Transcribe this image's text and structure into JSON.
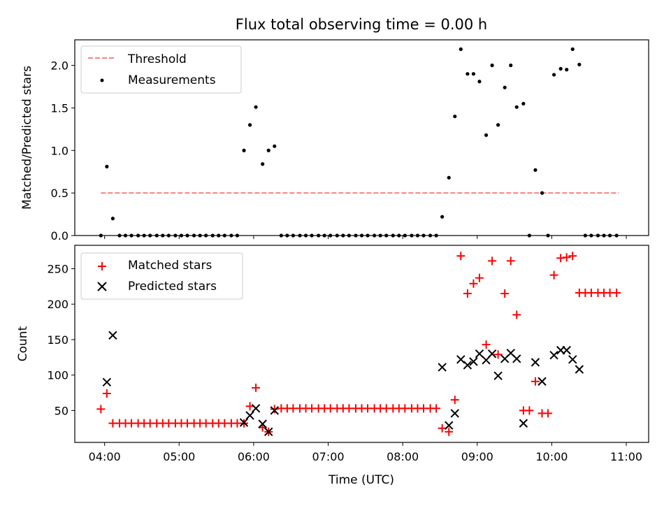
{
  "title": "Flux total observing time = 0.00 h",
  "chart_data": [
    {
      "type": "scatter",
      "ylabel": "Matched/Predicted stars",
      "xlim": [
        3.6,
        11.3
      ],
      "ylim": [
        0,
        2.3
      ],
      "yticks": [
        0.0,
        0.5,
        1.0,
        1.5,
        2.0
      ],
      "ytick_labels": [
        "0.0",
        "0.5",
        "1.0",
        "1.5",
        "2.0"
      ],
      "xticks": [
        4,
        5,
        6,
        7,
        8,
        9,
        10,
        11
      ],
      "xtick_labels": [],
      "legend": "top-left",
      "threshold": {
        "name": "Threshold",
        "value": 0.5,
        "x_range": [
          3.95,
          10.9
        ],
        "color": "#ff7f7f",
        "style": "dashed"
      },
      "series": [
        {
          "name": "Measurements",
          "color": "#000000",
          "marker": "dot",
          "points": [
            [
              3.95,
              0.0
            ],
            [
              4.03,
              0.81
            ],
            [
              4.11,
              0.2
            ],
            [
              4.2,
              0.0
            ],
            [
              4.28,
              0.0
            ],
            [
              4.36,
              0.0
            ],
            [
              4.45,
              0.0
            ],
            [
              4.53,
              0.0
            ],
            [
              4.61,
              0.0
            ],
            [
              4.7,
              0.0
            ],
            [
              4.78,
              0.0
            ],
            [
              4.86,
              0.0
            ],
            [
              4.95,
              0.0
            ],
            [
              5.03,
              0.0
            ],
            [
              5.11,
              0.0
            ],
            [
              5.2,
              0.0
            ],
            [
              5.28,
              0.0
            ],
            [
              5.36,
              0.0
            ],
            [
              5.45,
              0.0
            ],
            [
              5.53,
              0.0
            ],
            [
              5.61,
              0.0
            ],
            [
              5.7,
              0.0
            ],
            [
              5.78,
              0.0
            ],
            [
              5.87,
              1.0
            ],
            [
              5.95,
              1.3
            ],
            [
              6.03,
              1.51
            ],
            [
              6.12,
              0.84
            ],
            [
              6.2,
              1.0
            ],
            [
              6.28,
              1.05
            ],
            [
              6.37,
              0.0
            ],
            [
              6.45,
              0.0
            ],
            [
              6.53,
              0.0
            ],
            [
              6.62,
              0.0
            ],
            [
              6.7,
              0.0
            ],
            [
              6.78,
              0.0
            ],
            [
              6.87,
              0.0
            ],
            [
              6.95,
              0.0
            ],
            [
              7.03,
              0.0
            ],
            [
              7.12,
              0.0
            ],
            [
              7.2,
              0.0
            ],
            [
              7.28,
              0.0
            ],
            [
              7.37,
              0.0
            ],
            [
              7.45,
              0.0
            ],
            [
              7.53,
              0.0
            ],
            [
              7.62,
              0.0
            ],
            [
              7.7,
              0.0
            ],
            [
              7.78,
              0.0
            ],
            [
              7.87,
              0.0
            ],
            [
              7.95,
              0.0
            ],
            [
              8.03,
              0.0
            ],
            [
              8.12,
              0.0
            ],
            [
              8.2,
              0.0
            ],
            [
              8.28,
              0.0
            ],
            [
              8.37,
              0.0
            ],
            [
              8.45,
              0.0
            ],
            [
              8.53,
              0.22
            ],
            [
              8.62,
              0.68
            ],
            [
              8.7,
              1.4
            ],
            [
              8.78,
              2.19
            ],
            [
              8.87,
              1.9
            ],
            [
              8.95,
              1.9
            ],
            [
              9.03,
              1.81
            ],
            [
              9.12,
              1.18
            ],
            [
              9.2,
              2.0
            ],
            [
              9.28,
              1.3
            ],
            [
              9.37,
              1.74
            ],
            [
              9.45,
              2.0
            ],
            [
              9.53,
              1.51
            ],
            [
              9.62,
              1.55
            ],
            [
              9.7,
              0.0
            ],
            [
              9.78,
              0.77
            ],
            [
              9.87,
              0.5
            ],
            [
              9.95,
              0.0
            ],
            [
              10.03,
              1.89
            ],
            [
              10.12,
              1.96
            ],
            [
              10.2,
              1.95
            ],
            [
              10.28,
              2.19
            ],
            [
              10.37,
              2.01
            ],
            [
              10.45,
              0.0
            ],
            [
              10.53,
              0.0
            ],
            [
              10.62,
              0.0
            ],
            [
              10.7,
              0.0
            ],
            [
              10.78,
              0.0
            ],
            [
              10.87,
              0.0
            ]
          ]
        }
      ]
    },
    {
      "type": "scatter",
      "xlabel": "Time (UTC)",
      "ylabel": "Count",
      "xlim": [
        3.6,
        11.3
      ],
      "ylim": [
        5,
        283
      ],
      "yticks": [
        50,
        100,
        150,
        200,
        250
      ],
      "ytick_labels": [
        "50",
        "100",
        "150",
        "200",
        "250"
      ],
      "xticks": [
        4,
        5,
        6,
        7,
        8,
        9,
        10,
        11
      ],
      "xtick_labels": [
        "04:00",
        "05:00",
        "06:00",
        "07:00",
        "08:00",
        "09:00",
        "10:00",
        "11:00"
      ],
      "legend": "top-left",
      "series": [
        {
          "name": "Matched stars",
          "color": "#ff0000",
          "marker": "plus",
          "points": [
            [
              3.95,
              52
            ],
            [
              4.03,
              74
            ],
            [
              4.11,
              32
            ],
            [
              4.2,
              32
            ],
            [
              4.28,
              32
            ],
            [
              4.36,
              32
            ],
            [
              4.45,
              32
            ],
            [
              4.53,
              32
            ],
            [
              4.61,
              32
            ],
            [
              4.7,
              32
            ],
            [
              4.78,
              32
            ],
            [
              4.86,
              32
            ],
            [
              4.95,
              32
            ],
            [
              5.03,
              32
            ],
            [
              5.11,
              32
            ],
            [
              5.2,
              32
            ],
            [
              5.28,
              32
            ],
            [
              5.36,
              32
            ],
            [
              5.45,
              32
            ],
            [
              5.53,
              32
            ],
            [
              5.61,
              32
            ],
            [
              5.7,
              32
            ],
            [
              5.78,
              32
            ],
            [
              5.87,
              32
            ],
            [
              5.95,
              56
            ],
            [
              6.03,
              82
            ],
            [
              6.12,
              26
            ],
            [
              6.2,
              20
            ],
            [
              6.28,
              52
            ],
            [
              6.37,
              53
            ],
            [
              6.45,
              53
            ],
            [
              6.53,
              53
            ],
            [
              6.62,
              53
            ],
            [
              6.7,
              53
            ],
            [
              6.78,
              53
            ],
            [
              6.87,
              53
            ],
            [
              6.95,
              53
            ],
            [
              7.03,
              53
            ],
            [
              7.12,
              53
            ],
            [
              7.2,
              53
            ],
            [
              7.28,
              53
            ],
            [
              7.37,
              53
            ],
            [
              7.45,
              53
            ],
            [
              7.53,
              53
            ],
            [
              7.62,
              53
            ],
            [
              7.7,
              53
            ],
            [
              7.78,
              53
            ],
            [
              7.87,
              53
            ],
            [
              7.95,
              53
            ],
            [
              8.03,
              53
            ],
            [
              8.12,
              53
            ],
            [
              8.2,
              53
            ],
            [
              8.28,
              53
            ],
            [
              8.37,
              53
            ],
            [
              8.45,
              53
            ],
            [
              8.53,
              25
            ],
            [
              8.62,
              20
            ],
            [
              8.7,
              65
            ],
            [
              8.78,
              268
            ],
            [
              8.87,
              215
            ],
            [
              8.95,
              229
            ],
            [
              9.03,
              237
            ],
            [
              9.12,
              143
            ],
            [
              9.2,
              261
            ],
            [
              9.28,
              129
            ],
            [
              9.37,
              215
            ],
            [
              9.45,
              261
            ],
            [
              9.53,
              185
            ],
            [
              9.62,
              50
            ],
            [
              9.7,
              50
            ],
            [
              9.78,
              91
            ],
            [
              9.87,
              46
            ],
            [
              9.95,
              46
            ],
            [
              10.03,
              241
            ],
            [
              10.12,
              265
            ],
            [
              10.2,
              266
            ],
            [
              10.28,
              268
            ],
            [
              10.37,
              216
            ],
            [
              10.45,
              216
            ],
            [
              10.53,
              216
            ],
            [
              10.62,
              216
            ],
            [
              10.7,
              216
            ],
            [
              10.78,
              216
            ],
            [
              10.87,
              216
            ]
          ]
        },
        {
          "name": "Predicted stars",
          "color": "#000000",
          "marker": "x",
          "points": [
            [
              4.03,
              90
            ],
            [
              4.11,
              156
            ],
            [
              5.87,
              33
            ],
            [
              5.95,
              43
            ],
            [
              6.03,
              53
            ],
            [
              6.12,
              31
            ],
            [
              6.2,
              20
            ],
            [
              6.28,
              50
            ],
            [
              8.53,
              111
            ],
            [
              8.62,
              29
            ],
            [
              8.7,
              46
            ],
            [
              8.78,
              122
            ],
            [
              8.87,
              114
            ],
            [
              8.95,
              119
            ],
            [
              9.03,
              130
            ],
            [
              9.12,
              121
            ],
            [
              9.2,
              130
            ],
            [
              9.28,
              99
            ],
            [
              9.37,
              123
            ],
            [
              9.45,
              131
            ],
            [
              9.53,
              123
            ],
            [
              9.62,
              32
            ],
            [
              9.78,
              118
            ],
            [
              9.87,
              91
            ],
            [
              10.03,
              128
            ],
            [
              10.12,
              135
            ],
            [
              10.2,
              135
            ],
            [
              10.28,
              122
            ],
            [
              10.37,
              108
            ]
          ]
        }
      ]
    }
  ]
}
